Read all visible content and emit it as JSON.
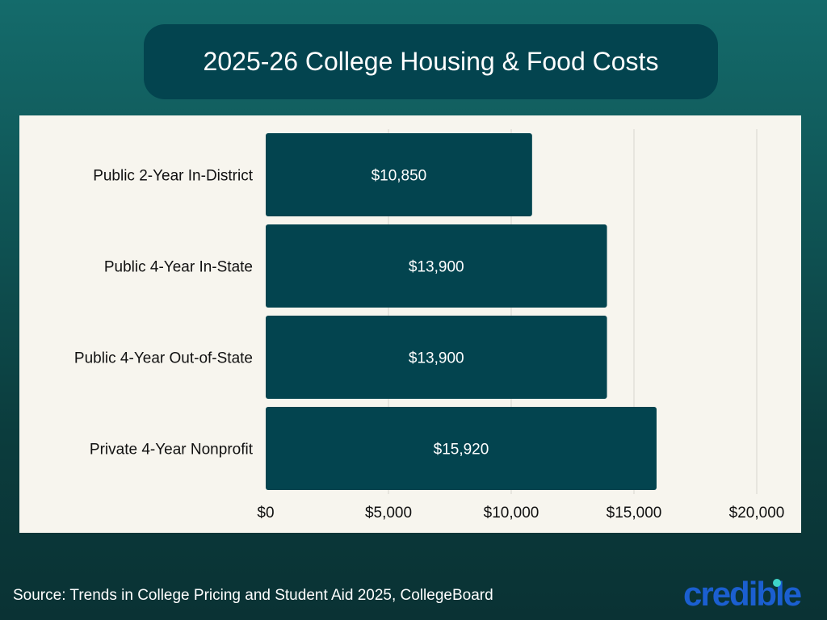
{
  "chart_data": {
    "type": "bar",
    "orientation": "horizontal",
    "title": "2025-26 College Housing & Food Costs",
    "categories": [
      "Public 2-Year In-District",
      "Public 4-Year In-State",
      "Public 4-Year Out-of-State",
      "Private 4-Year Nonprofit"
    ],
    "values": [
      10850,
      13900,
      13900,
      15920
    ],
    "data_labels": [
      "$10,850",
      "$13,900",
      "$13,900",
      "$15,920"
    ],
    "xlim": [
      0,
      20000
    ],
    "x_ticks": [
      0,
      5000,
      10000,
      15000,
      20000
    ],
    "x_tick_labels": [
      "$0",
      "$5,000",
      "$10,000",
      "$15,000",
      "$20,000"
    ],
    "grid": "vertical",
    "bar_color": "#03444f",
    "legend": "none"
  },
  "footer": {
    "source": "Source: Trends in College Pricing and Student Aid 2025, CollegeBoard",
    "logo": "credible"
  },
  "colors": {
    "logo": "#1b5fd0",
    "logo_dot": "#3fd5c8",
    "panel": "#f7f5ee"
  }
}
